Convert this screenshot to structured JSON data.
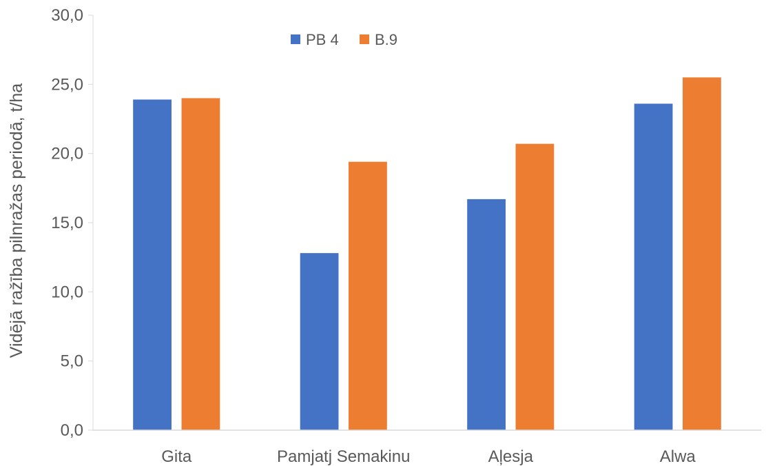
{
  "chart_data": {
    "type": "bar",
    "categories": [
      "Gita",
      "Pamjatj Semakinu",
      "Aļesja",
      "Alwa"
    ],
    "series": [
      {
        "name": "PB 4",
        "color": "#4472C4",
        "values": [
          23.9,
          12.8,
          16.7,
          23.6
        ]
      },
      {
        "name": "B.9",
        "color": "#ED7D31",
        "values": [
          24.0,
          19.4,
          20.7,
          25.5
        ]
      }
    ],
    "title": "",
    "xlabel": "",
    "ylabel": "Vidējā ražība pilnražas periodā, t/ha",
    "ylim": [
      0,
      30
    ],
    "yticks": [
      "0,0",
      "5,0",
      "10,0",
      "15,0",
      "20,0",
      "25,0",
      "30,0"
    ],
    "grid": false,
    "legend_position": "top"
  }
}
